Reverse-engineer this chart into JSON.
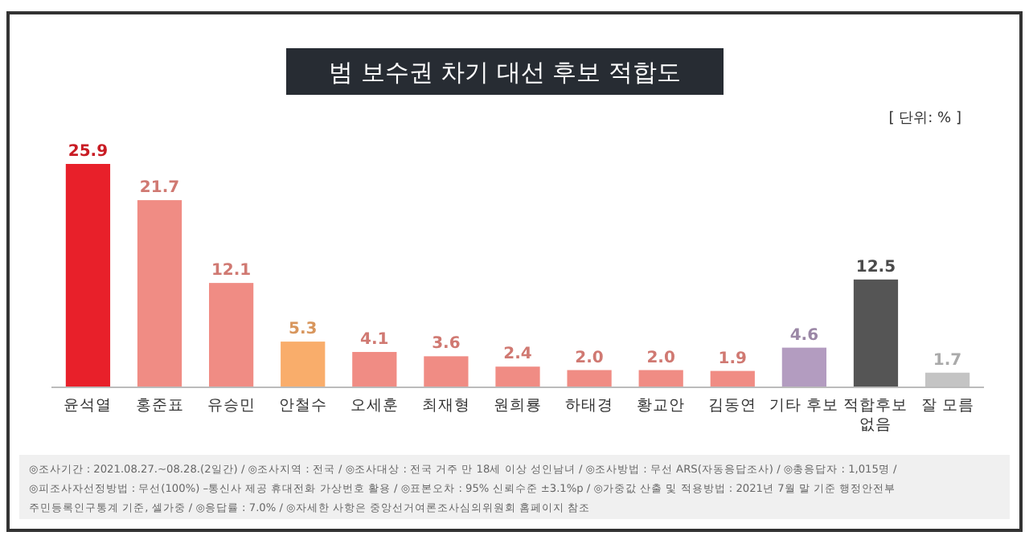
{
  "chart_data": {
    "type": "bar",
    "title": "범 보수권 차기 대선 후보 적합도",
    "categories": [
      "윤석열",
      "홍준표",
      "유승민",
      "안철수",
      "오세훈",
      "최재형",
      "원희룡",
      "하태경",
      "황교안",
      "김동연",
      "기타 후보",
      "적합후보 없음",
      "잘 모름"
    ],
    "values": [
      25.9,
      21.7,
      12.1,
      5.3,
      4.1,
      3.6,
      2.4,
      2.0,
      2.0,
      1.9,
      4.6,
      12.5,
      1.7
    ],
    "colors": [
      "#e8202a",
      "#f08c84",
      "#f08c84",
      "#f9ad6b",
      "#f08c84",
      "#f08c84",
      "#f08c84",
      "#f08c84",
      "#f08c84",
      "#f08c84",
      "#b39cc0",
      "#555555",
      "#c4c4c4"
    ],
    "value_labels": [
      "25.9",
      "21.7",
      "12.1",
      "5.3",
      "4.1",
      "3.6",
      "2.4",
      "2.0",
      "2.0",
      "1.9",
      "4.6",
      "12.5",
      "1.7"
    ],
    "annotations": [
      "[ 단위: % ]",
      "◎조사기간 : 2021.08.27.~08.28.(2일간) / ◎조사지역 : 전국 / ◎조사대상 : 전국 거주 만 18세 이상 성인남녀 / ◎조사방법 : 무선 ARS(자동응답조사) / ◎총응답자 : 1,015명 /",
      "◎피조사자선정방법 : 무선(100%) –통신사 제공 휴대전화 가상번호 활용 / ◎표본오차 : 95% 신뢰수준 ±3.1%p / ◎가중값 산출 및 적용방법 : 2021년 7월 말 기준 행정안전부",
      "주민등록인구통계 기준, 셀가중 / ◎응답률 : 7.0% / ◎자세한 사항은 중앙선거여론조사심의위원회 홈페이지 참조"
    ]
  }
}
